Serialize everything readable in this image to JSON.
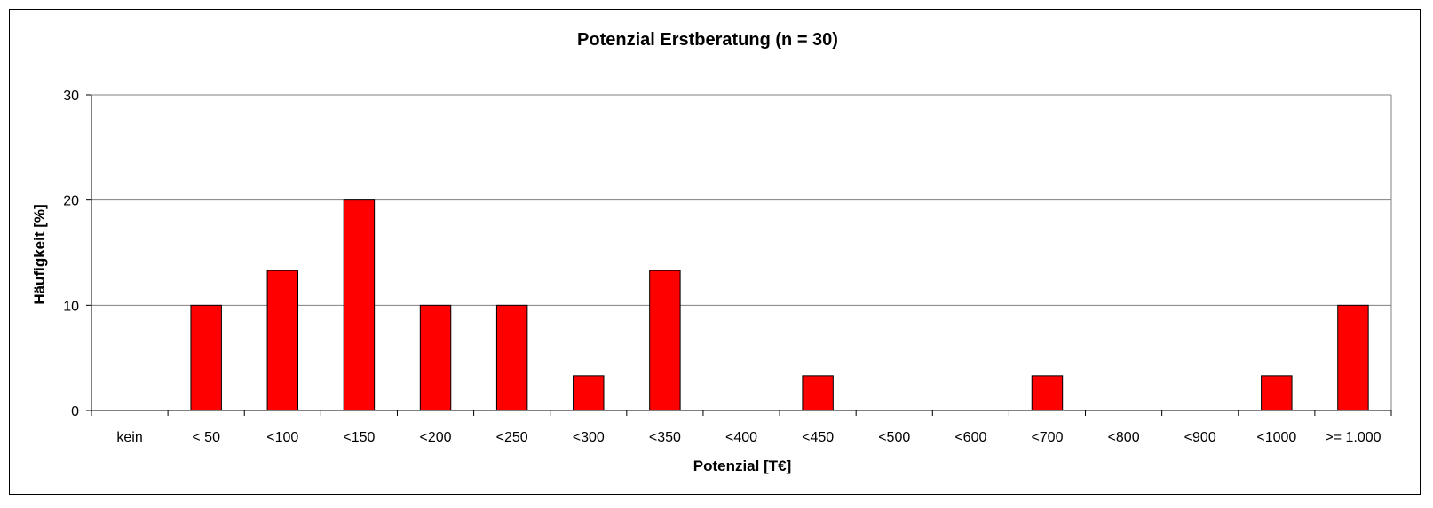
{
  "chart_data": {
    "type": "bar",
    "title": "Potenzial Erstberatung (n = 30)",
    "xlabel": "Potenzial [T€]",
    "ylabel": "Häufigkeit [%]",
    "ylim": [
      0,
      30
    ],
    "yticks": [
      0,
      10,
      20,
      30
    ],
    "grid": true,
    "legend": "none",
    "bar_color": "#ff0000",
    "categories": [
      "kein",
      "< 50",
      "<100",
      "<150",
      "<200",
      "<250",
      "<300",
      "<350",
      "<400",
      "<450",
      "<500",
      "<600",
      "<700",
      "<800",
      "<900",
      "<1000",
      ">= 1.000"
    ],
    "values": [
      0,
      10,
      13.3,
      20,
      10,
      10,
      3.3,
      13.3,
      0,
      3.3,
      0,
      0,
      3.3,
      0,
      0,
      3.3,
      10
    ]
  }
}
